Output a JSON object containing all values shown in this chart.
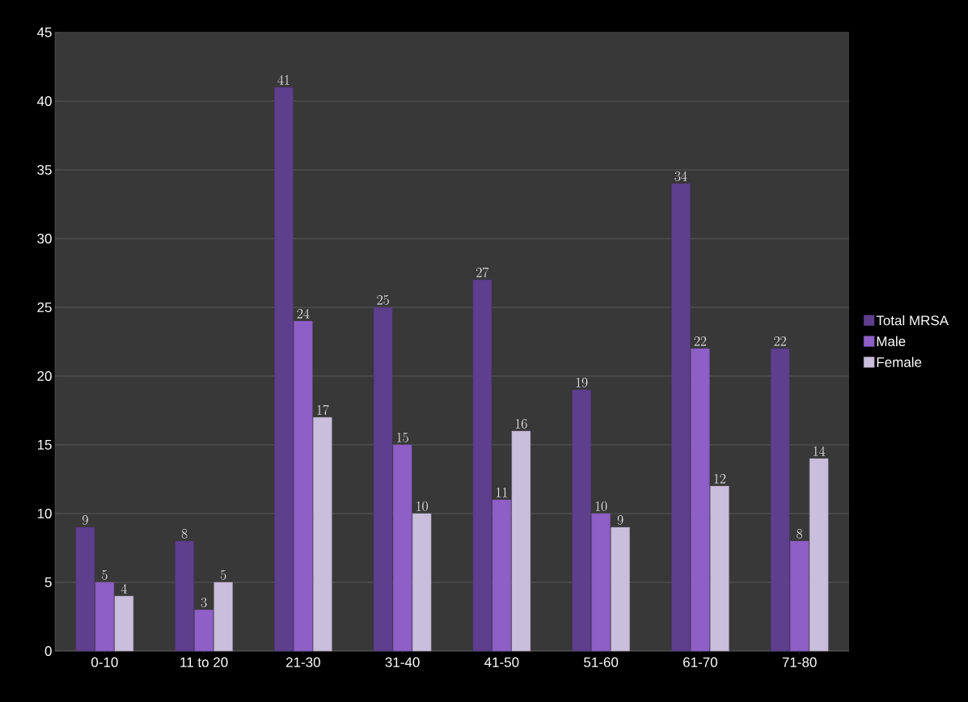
{
  "chart_data": {
    "type": "bar",
    "categories": [
      "0-10",
      "11 to 20",
      "21-30",
      "31-40",
      "41-50",
      "51-60",
      "61-70",
      "71-80"
    ],
    "series": [
      {
        "name": "Total MRSA",
        "color": "#5e3f8e",
        "values": [
          9,
          8,
          41,
          25,
          27,
          19,
          34,
          22
        ]
      },
      {
        "name": "Male",
        "color": "#8e5fc6",
        "values": [
          5,
          3,
          24,
          15,
          11,
          10,
          22,
          8
        ]
      },
      {
        "name": "Female",
        "color": "#c9bedb",
        "values": [
          4,
          5,
          17,
          10,
          16,
          9,
          12,
          14
        ]
      }
    ],
    "ylim": [
      0,
      45
    ],
    "yticks": [
      0,
      5,
      10,
      15,
      20,
      25,
      30,
      35,
      40,
      45
    ],
    "grid": "y",
    "legend": "right",
    "data_labels": true
  }
}
